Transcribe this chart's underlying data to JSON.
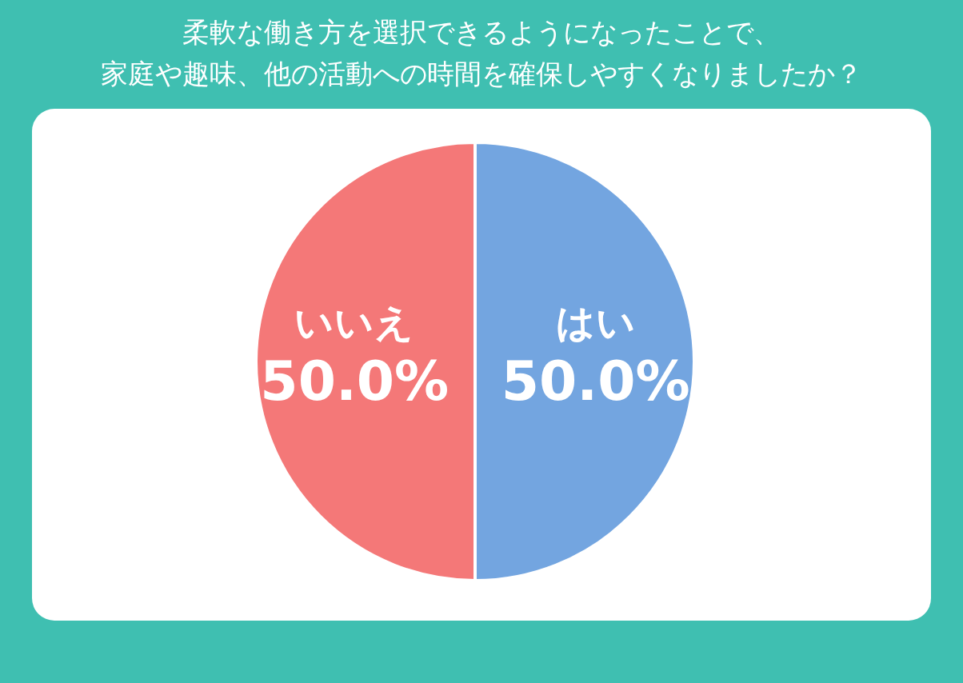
{
  "chart_data": {
    "type": "pie",
    "title": "柔軟な働き方を選択できるようになったことで、",
    "subtitle": "家庭や趣味、他の活動への時間を確保しやすくなりましたか？",
    "categories": [
      "はい",
      "いいえ"
    ],
    "values": [
      50.0,
      50.0
    ],
    "colors": [
      "#73a5e0",
      "#f47878"
    ],
    "value_labels": [
      "50.0%",
      "50.0%"
    ]
  }
}
